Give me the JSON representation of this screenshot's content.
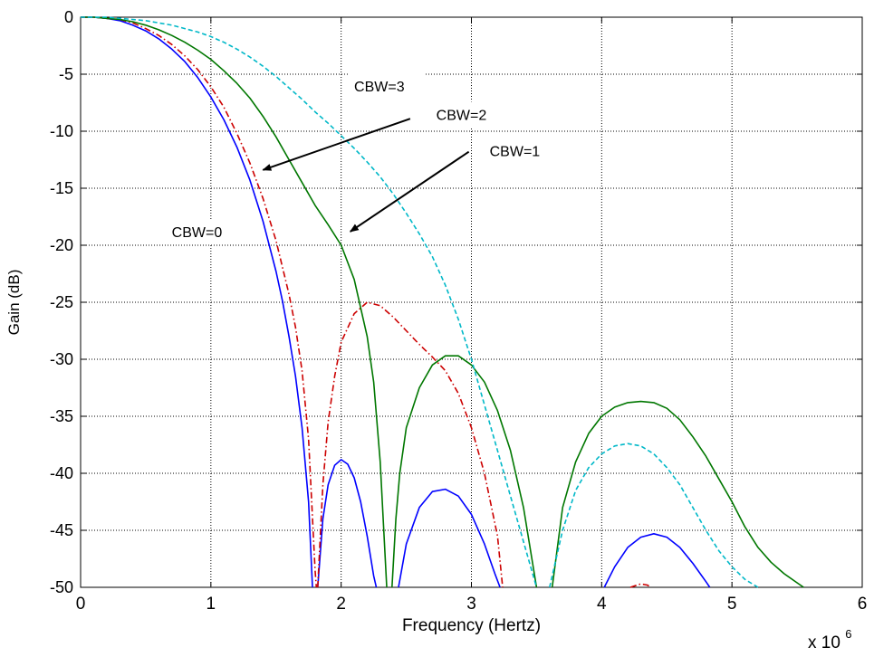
{
  "chart_data": {
    "type": "line",
    "title": "",
    "xlabel": "Frequency (Hertz)",
    "ylabel": "Gain (dB)",
    "x_multiplier": "x 10",
    "x_multiplier_exp": "6",
    "xlim": [
      0,
      6
    ],
    "ylim": [
      -50,
      0
    ],
    "x_ticks": [
      0,
      1,
      2,
      3,
      4,
      5,
      6
    ],
    "y_ticks": [
      0,
      -5,
      -10,
      -15,
      -20,
      -25,
      -30,
      -35,
      -40,
      -45,
      -50
    ],
    "grid": true,
    "series": [
      {
        "name": "CBW=0",
        "color": "#0000ff",
        "dash": "solid",
        "segments": [
          [
            [
              0,
              0
            ],
            [
              0.1,
              0
            ],
            [
              0.2,
              -0.1
            ],
            [
              0.3,
              -0.3
            ],
            [
              0.4,
              -0.7
            ],
            [
              0.5,
              -1.2
            ],
            [
              0.6,
              -1.9
            ],
            [
              0.7,
              -2.8
            ],
            [
              0.8,
              -3.9
            ],
            [
              0.9,
              -5.3
            ],
            [
              1.0,
              -7.0
            ],
            [
              1.1,
              -9.0
            ],
            [
              1.2,
              -11.4
            ],
            [
              1.3,
              -14.3
            ],
            [
              1.4,
              -17.9
            ],
            [
              1.5,
              -22.3
            ],
            [
              1.55,
              -24.9
            ],
            [
              1.6,
              -28.0
            ],
            [
              1.65,
              -31.5
            ],
            [
              1.7,
              -36.0
            ],
            [
              1.75,
              -42.5
            ],
            [
              1.78,
              -50
            ]
          ],
          [
            [
              1.82,
              -50
            ],
            [
              1.86,
              -44.0
            ],
            [
              1.9,
              -41.0
            ],
            [
              1.95,
              -39.3
            ],
            [
              2.0,
              -38.8
            ],
            [
              2.05,
              -39.2
            ],
            [
              2.1,
              -40.4
            ],
            [
              2.15,
              -42.5
            ],
            [
              2.2,
              -45.5
            ],
            [
              2.25,
              -49.0
            ],
            [
              2.27,
              -50
            ]
          ],
          [
            [
              2.44,
              -50
            ],
            [
              2.5,
              -46.2
            ],
            [
              2.6,
              -43.0
            ],
            [
              2.7,
              -41.6
            ],
            [
              2.8,
              -41.4
            ],
            [
              2.9,
              -42.0
            ],
            [
              3.0,
              -43.6
            ],
            [
              3.1,
              -46.2
            ],
            [
              3.18,
              -48.8
            ],
            [
              3.22,
              -50
            ]
          ],
          [
            [
              4.02,
              -50
            ],
            [
              4.1,
              -48.2
            ],
            [
              4.2,
              -46.5
            ],
            [
              4.3,
              -45.6
            ],
            [
              4.4,
              -45.3
            ],
            [
              4.5,
              -45.6
            ],
            [
              4.6,
              -46.5
            ],
            [
              4.7,
              -47.9
            ],
            [
              4.8,
              -49.5
            ],
            [
              4.83,
              -50
            ]
          ]
        ]
      },
      {
        "name": "CBW=1",
        "color": "#cc0000",
        "dash": "dashdot",
        "segments": [
          [
            [
              0,
              0
            ],
            [
              0.1,
              0
            ],
            [
              0.2,
              -0.1
            ],
            [
              0.3,
              -0.2
            ],
            [
              0.4,
              -0.5
            ],
            [
              0.5,
              -1.0
            ],
            [
              0.6,
              -1.6
            ],
            [
              0.7,
              -2.4
            ],
            [
              0.8,
              -3.4
            ],
            [
              0.9,
              -4.6
            ],
            [
              1.0,
              -6.1
            ],
            [
              1.1,
              -7.9
            ],
            [
              1.2,
              -10.2
            ],
            [
              1.3,
              -12.8
            ],
            [
              1.4,
              -15.9
            ],
            [
              1.5,
              -19.6
            ],
            [
              1.6,
              -24.3
            ],
            [
              1.65,
              -27.2
            ],
            [
              1.7,
              -31.0
            ],
            [
              1.75,
              -37.0
            ],
            [
              1.8,
              -48.5
            ],
            [
              1.81,
              -50
            ]
          ],
          [
            [
              1.82,
              -50
            ],
            [
              1.86,
              -41.0
            ],
            [
              1.9,
              -35.5
            ],
            [
              1.95,
              -31.5
            ],
            [
              2.0,
              -28.5
            ],
            [
              2.1,
              -26.0
            ],
            [
              2.2,
              -25.0
            ],
            [
              2.3,
              -25.3
            ],
            [
              2.4,
              -26.3
            ],
            [
              2.5,
              -27.5
            ],
            [
              2.6,
              -28.7
            ],
            [
              2.7,
              -29.8
            ],
            [
              2.8,
              -31.0
            ],
            [
              2.9,
              -33.0
            ],
            [
              3.0,
              -36.0
            ],
            [
              3.1,
              -40.0
            ],
            [
              3.2,
              -45.5
            ],
            [
              3.24,
              -50
            ]
          ],
          [
            [
              4.22,
              -50
            ],
            [
              4.3,
              -49.7
            ],
            [
              4.35,
              -49.8
            ],
            [
              4.38,
              -50
            ]
          ]
        ]
      },
      {
        "name": "CBW=2",
        "color": "#007700",
        "dash": "solid",
        "segments": [
          [
            [
              0,
              0
            ],
            [
              0.1,
              0
            ],
            [
              0.2,
              -0.1
            ],
            [
              0.3,
              -0.2
            ],
            [
              0.4,
              -0.4
            ],
            [
              0.5,
              -0.7
            ],
            [
              0.6,
              -1.1
            ],
            [
              0.7,
              -1.6
            ],
            [
              0.8,
              -2.2
            ],
            [
              0.9,
              -2.9
            ],
            [
              1.0,
              -3.7
            ],
            [
              1.1,
              -4.7
            ],
            [
              1.2,
              -5.8
            ],
            [
              1.3,
              -7.1
            ],
            [
              1.4,
              -8.7
            ],
            [
              1.5,
              -10.5
            ],
            [
              1.6,
              -12.5
            ],
            [
              1.7,
              -14.5
            ],
            [
              1.8,
              -16.5
            ],
            [
              1.9,
              -18.2
            ],
            [
              2.0,
              -20.0
            ],
            [
              2.1,
              -23.0
            ],
            [
              2.2,
              -28.0
            ],
            [
              2.25,
              -32.0
            ],
            [
              2.3,
              -39.0
            ],
            [
              2.35,
              -50
            ]
          ],
          [
            [
              2.39,
              -50
            ],
            [
              2.42,
              -44.0
            ],
            [
              2.45,
              -40.0
            ],
            [
              2.5,
              -36.0
            ],
            [
              2.6,
              -32.5
            ],
            [
              2.7,
              -30.5
            ],
            [
              2.8,
              -29.7
            ],
            [
              2.9,
              -29.7
            ],
            [
              3.0,
              -30.5
            ],
            [
              3.1,
              -32.0
            ],
            [
              3.2,
              -34.5
            ],
            [
              3.3,
              -38.0
            ],
            [
              3.4,
              -43.0
            ],
            [
              3.5,
              -50
            ]
          ],
          [
            [
              3.62,
              -50
            ],
            [
              3.7,
              -43.0
            ],
            [
              3.8,
              -39.0
            ],
            [
              3.9,
              -36.5
            ],
            [
              4.0,
              -35.0
            ],
            [
              4.1,
              -34.2
            ],
            [
              4.2,
              -33.8
            ],
            [
              4.3,
              -33.7
            ],
            [
              4.4,
              -33.8
            ],
            [
              4.5,
              -34.3
            ],
            [
              4.6,
              -35.3
            ],
            [
              4.7,
              -36.8
            ],
            [
              4.8,
              -38.5
            ],
            [
              4.9,
              -40.5
            ],
            [
              5.0,
              -42.5
            ],
            [
              5.1,
              -44.7
            ],
            [
              5.2,
              -46.5
            ],
            [
              5.3,
              -47.8
            ],
            [
              5.4,
              -48.8
            ],
            [
              5.5,
              -49.6
            ],
            [
              5.55,
              -50
            ]
          ]
        ]
      },
      {
        "name": "CBW=3",
        "color": "#00b8c8",
        "dash": "dashed",
        "segments": [
          [
            [
              0,
              0
            ],
            [
              0.1,
              0
            ],
            [
              0.2,
              0
            ],
            [
              0.3,
              -0.1
            ],
            [
              0.4,
              -0.2
            ],
            [
              0.5,
              -0.3
            ],
            [
              0.6,
              -0.5
            ],
            [
              0.7,
              -0.7
            ],
            [
              0.8,
              -1.0
            ],
            [
              0.9,
              -1.3
            ],
            [
              1.0,
              -1.7
            ],
            [
              1.1,
              -2.2
            ],
            [
              1.2,
              -2.8
            ],
            [
              1.3,
              -3.5
            ],
            [
              1.4,
              -4.3
            ],
            [
              1.5,
              -5.2
            ],
            [
              1.6,
              -6.2
            ],
            [
              1.7,
              -7.2
            ],
            [
              1.8,
              -8.3
            ],
            [
              1.9,
              -9.3
            ],
            [
              2.0,
              -10.4
            ],
            [
              2.1,
              -11.5
            ],
            [
              2.2,
              -12.7
            ],
            [
              2.3,
              -14.0
            ],
            [
              2.4,
              -15.5
            ],
            [
              2.5,
              -17.2
            ],
            [
              2.6,
              -19.0
            ],
            [
              2.7,
              -21.0
            ],
            [
              2.8,
              -23.5
            ],
            [
              2.9,
              -26.5
            ],
            [
              3.0,
              -30.0
            ],
            [
              3.1,
              -34.0
            ],
            [
              3.2,
              -38.0
            ],
            [
              3.3,
              -42.0
            ],
            [
              3.4,
              -46.0
            ],
            [
              3.5,
              -50
            ]
          ],
          [
            [
              3.6,
              -50
            ],
            [
              3.7,
              -45.0
            ],
            [
              3.8,
              -41.5
            ],
            [
              3.9,
              -39.5
            ],
            [
              4.0,
              -38.3
            ],
            [
              4.1,
              -37.6
            ],
            [
              4.2,
              -37.4
            ],
            [
              4.3,
              -37.6
            ],
            [
              4.4,
              -38.3
            ],
            [
              4.5,
              -39.5
            ],
            [
              4.6,
              -41.0
            ],
            [
              4.7,
              -43.0
            ],
            [
              4.8,
              -45.0
            ],
            [
              4.9,
              -46.8
            ],
            [
              5.0,
              -48.2
            ],
            [
              5.1,
              -49.3
            ],
            [
              5.2,
              -50
            ]
          ]
        ]
      }
    ],
    "annotations": [
      {
        "text": "CBW=3",
        "x": 2.1,
        "y": -6.5
      },
      {
        "text": "CBW=2",
        "x": 2.73,
        "y": -9.0
      },
      {
        "text": "CBW=1",
        "x": 3.14,
        "y": -12.2
      },
      {
        "text": "CBW=0",
        "x": 0.7,
        "y": -19.3
      }
    ],
    "arrows": [
      {
        "from": [
          2.53,
          -8.9
        ],
        "to": [
          1.4,
          -13.4
        ]
      },
      {
        "from": [
          2.98,
          -11.8
        ],
        "to": [
          2.07,
          -18.8
        ]
      }
    ]
  }
}
